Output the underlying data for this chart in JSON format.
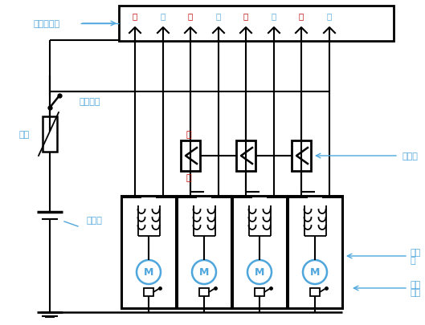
{
  "bg_color": "#ffffff",
  "line_color": "#000000",
  "text_color_cn": "#4ea6dc",
  "text_color_red": "#c00000",
  "label_总控制开关": "总控制开关",
  "label_升1": "升",
  "label_降1": "降",
  "label_升2": "升",
  "label_降2": "降",
  "label_升3": "升",
  "label_降3": "降",
  "label_升4": "升",
  "label_降4": "降",
  "label_升_door": "升",
  "label_降_door": "降",
  "label_点火开关": "点火开关",
  "label_熔丝": "熔丝",
  "label_蓄电池": "蓄电池",
  "label_门开关": "门开关",
  "label_电动机1": "电动",
  "label_电动机2": "机",
  "label_断路开关1": "断路",
  "label_断路开关2": "开关",
  "figsize": [
    5.29,
    4.06
  ],
  "dpi": 100
}
